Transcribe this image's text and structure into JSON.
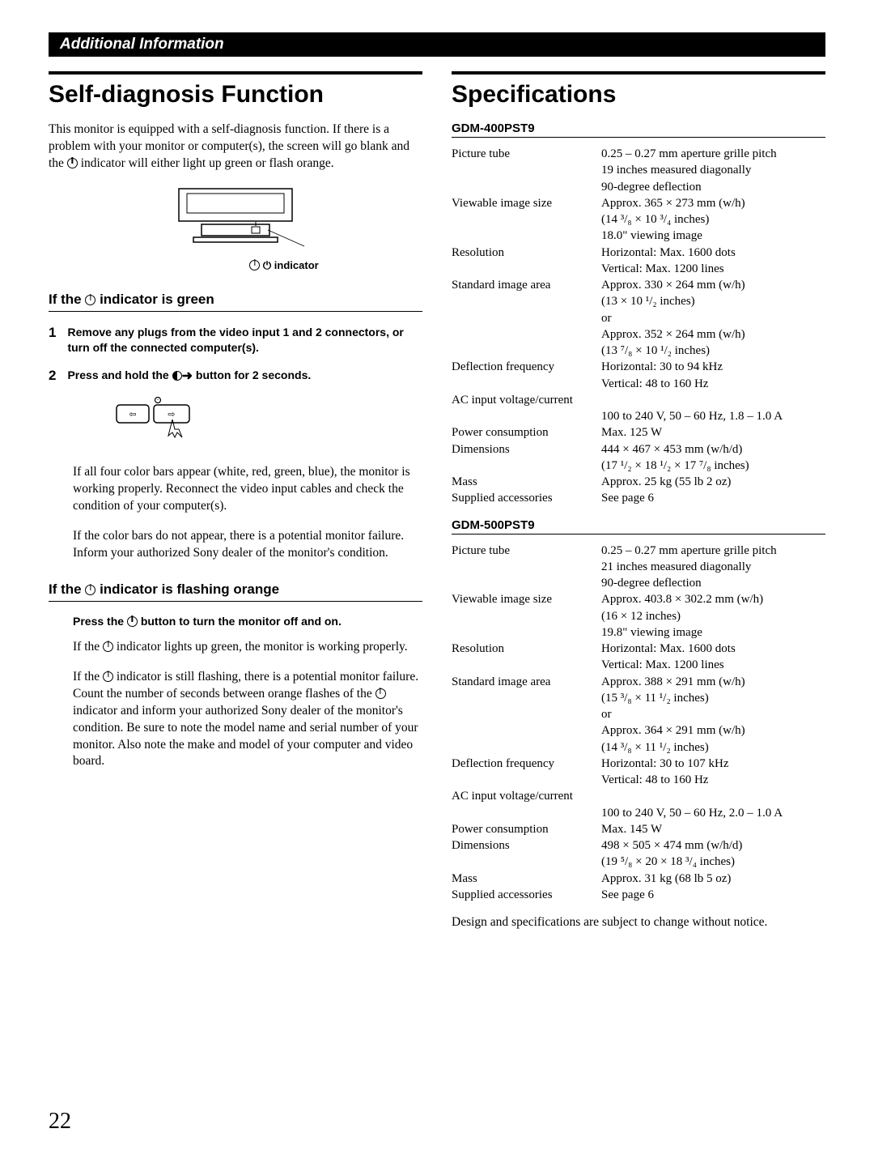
{
  "header": "Additional Information",
  "left": {
    "title": "Self-diagnosis Function",
    "intro": "This monitor is equipped with a self-diagnosis function. If there is a problem with your monitor or computer(s), the screen will go blank and the ⏻ indicator will either light up green or flash orange.",
    "diagram_caption": "⏻ indicator",
    "green": {
      "heading": "If the ⏻ indicator is green",
      "step1_num": "1",
      "step1": "Remove any plugs from the video input 1 and 2 connectors, or turn off the connected computer(s).",
      "step2_num": "2",
      "step2": "Press and hold the ◐➜ button for 2 seconds.",
      "para1": "If all four color bars appear (white, red, green, blue), the monitor is working properly. Reconnect the video input cables and check the condition of your computer(s).",
      "para2": "If the color bars do not appear, there is a potential monitor failure. Inform your authorized Sony dealer of the monitor's condition."
    },
    "orange": {
      "heading": "If the ⏻ indicator is flashing orange",
      "bold_line": "Press the ⏻ button to turn the monitor off and on.",
      "para1": "If the ⏻ indicator lights up green, the monitor is working properly.",
      "para2": "If the ⏻ indicator is still flashing, there is a potential monitor failure. Count the number of seconds between orange flashes of the ⏻ indicator and inform your authorized Sony dealer of the monitor's condition. Be sure to note the model name and serial number of your monitor. Also note the make and model of your computer and video board."
    }
  },
  "right": {
    "title": "Specifications",
    "model1": {
      "name": "GDM-400PST9",
      "rows": [
        {
          "label": "Picture tube",
          "value": "0.25 – 0.27 mm aperture grille pitch"
        },
        {
          "label": "",
          "value": "19 inches measured diagonally"
        },
        {
          "label": "",
          "value": "90-degree deflection"
        },
        {
          "label": "Viewable image size",
          "value": "Approx. 365 × 273 mm (w/h)"
        },
        {
          "label": "",
          "value": "(14 ³/₈ × 10 ³/₄ inches)"
        },
        {
          "label": "",
          "value": "18.0\" viewing image"
        },
        {
          "label": "Resolution",
          "value": "Horizontal: Max. 1600 dots"
        },
        {
          "label": "",
          "value": "Vertical: Max. 1200 lines"
        },
        {
          "label": "Standard image area",
          "value": "Approx. 330 × 264 mm (w/h)"
        },
        {
          "label": "",
          "value": "(13 × 10 ¹/₂ inches)"
        },
        {
          "label": "",
          "value": "or"
        },
        {
          "label": "",
          "value": "Approx. 352 × 264 mm (w/h)"
        },
        {
          "label": "",
          "value": "(13 ⁷/₈ × 10 ¹/₂ inches)"
        },
        {
          "label": "Deflection frequency",
          "value": "Horizontal: 30 to 94 kHz"
        },
        {
          "label": "",
          "value": "Vertical: 48 to 160 Hz"
        },
        {
          "label": "AC input voltage/current",
          "value": ""
        },
        {
          "label": "",
          "value": "100 to 240 V, 50 – 60 Hz, 1.8 – 1.0 A"
        },
        {
          "label": "Power consumption",
          "value": "Max. 125 W"
        },
        {
          "label": "Dimensions",
          "value": "444 × 467 × 453 mm (w/h/d)"
        },
        {
          "label": "",
          "value": "(17 ¹/₂ × 18 ¹/₂ × 17 ⁷/₈ inches)"
        },
        {
          "label": "Mass",
          "value": "Approx. 25 kg (55 lb 2 oz)"
        },
        {
          "label": "Supplied accessories",
          "value": "See page 6"
        }
      ]
    },
    "model2": {
      "name": "GDM-500PST9",
      "rows": [
        {
          "label": "Picture tube",
          "value": "0.25 – 0.27 mm aperture grille pitch"
        },
        {
          "label": "",
          "value": "21 inches measured diagonally"
        },
        {
          "label": "",
          "value": "90-degree deflection"
        },
        {
          "label": "Viewable image size",
          "value": "Approx. 403.8 × 302.2 mm (w/h)"
        },
        {
          "label": "",
          "value": "(16 × 12 inches)"
        },
        {
          "label": "",
          "value": "19.8\" viewing image"
        },
        {
          "label": "Resolution",
          "value": "Horizontal: Max. 1600 dots"
        },
        {
          "label": "",
          "value": "Vertical: Max. 1200 lines"
        },
        {
          "label": "Standard image area",
          "value": "Approx. 388 × 291 mm (w/h)"
        },
        {
          "label": "",
          "value": "(15 ³/₈ × 11 ¹/₂ inches)"
        },
        {
          "label": "",
          "value": "or"
        },
        {
          "label": "",
          "value": "Approx. 364 × 291 mm (w/h)"
        },
        {
          "label": "",
          "value": "(14 ³/₈ × 11 ¹/₂ inches)"
        },
        {
          "label": "Deflection frequency",
          "value": "Horizontal: 30 to 107 kHz"
        },
        {
          "label": "",
          "value": "Vertical: 48 to 160 Hz"
        },
        {
          "label": "AC input voltage/current",
          "value": ""
        },
        {
          "label": "",
          "value": "100 to 240 V, 50 – 60 Hz, 2.0 – 1.0 A"
        },
        {
          "label": "Power consumption",
          "value": "Max. 145 W"
        },
        {
          "label": "Dimensions",
          "value": "498 × 505 × 474 mm (w/h/d)"
        },
        {
          "label": "",
          "value": "(19 ⁵/₈ × 20 × 18 ³/₄ inches)"
        },
        {
          "label": "Mass",
          "value": "Approx. 31 kg (68 lb 5 oz)"
        },
        {
          "label": "Supplied accessories",
          "value": "See page 6"
        }
      ]
    },
    "note": "Design and specifications are subject to change without notice."
  },
  "page_number": "22"
}
